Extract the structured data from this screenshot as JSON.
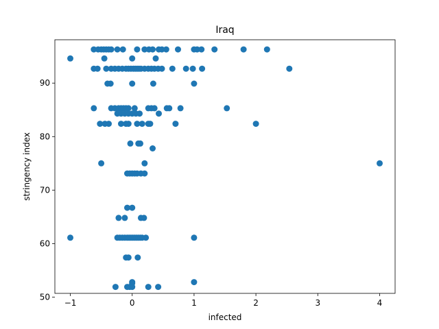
{
  "chart_data": {
    "type": "scatter",
    "title": "Iraq",
    "xlabel": "infected",
    "ylabel": "stringency index",
    "xlim": [
      -1.25,
      4.25
    ],
    "ylim": [
      50.7,
      98.1
    ],
    "xticks": [
      -1,
      0,
      1,
      2,
      3,
      4
    ],
    "yticks": [
      50,
      60,
      70,
      80,
      90
    ],
    "grid": false,
    "color": "#1f77b4",
    "points": [
      [
        -1.0,
        94.6
      ],
      [
        -1.0,
        61.1
      ],
      [
        -0.62,
        96.3
      ],
      [
        -0.55,
        96.3
      ],
      [
        -0.5,
        96.3
      ],
      [
        -0.46,
        96.3
      ],
      [
        -0.42,
        96.3
      ],
      [
        -0.38,
        96.3
      ],
      [
        -0.34,
        96.3
      ],
      [
        -0.24,
        96.3
      ],
      [
        -0.15,
        96.3
      ],
      [
        0.08,
        96.3
      ],
      [
        0.2,
        96.3
      ],
      [
        0.27,
        96.3
      ],
      [
        0.33,
        96.3
      ],
      [
        0.43,
        96.3
      ],
      [
        0.48,
        96.3
      ],
      [
        0.55,
        96.3
      ],
      [
        0.74,
        96.3
      ],
      [
        1.0,
        96.3
      ],
      [
        1.05,
        96.3
      ],
      [
        1.12,
        96.3
      ],
      [
        1.33,
        96.3
      ],
      [
        1.8,
        96.3
      ],
      [
        2.18,
        96.3
      ],
      [
        -0.45,
        94.6
      ],
      [
        0.0,
        94.6
      ],
      [
        0.38,
        94.6
      ],
      [
        -0.62,
        92.7
      ],
      [
        -0.56,
        92.7
      ],
      [
        -0.42,
        92.7
      ],
      [
        -0.34,
        92.7
      ],
      [
        -0.28,
        92.7
      ],
      [
        -0.22,
        92.7
      ],
      [
        -0.16,
        92.7
      ],
      [
        -0.1,
        92.7
      ],
      [
        -0.06,
        92.7
      ],
      [
        -0.02,
        92.7
      ],
      [
        0.02,
        92.7
      ],
      [
        0.05,
        92.7
      ],
      [
        0.08,
        92.7
      ],
      [
        0.11,
        92.7
      ],
      [
        0.14,
        92.7
      ],
      [
        0.2,
        92.7
      ],
      [
        0.26,
        92.7
      ],
      [
        0.31,
        92.7
      ],
      [
        0.36,
        92.7
      ],
      [
        0.42,
        92.7
      ],
      [
        0.48,
        92.7
      ],
      [
        0.65,
        92.7
      ],
      [
        0.87,
        92.7
      ],
      [
        0.98,
        92.7
      ],
      [
        1.13,
        92.7
      ],
      [
        2.54,
        92.7
      ],
      [
        -0.4,
        89.9
      ],
      [
        -0.35,
        89.9
      ],
      [
        0.0,
        89.9
      ],
      [
        0.34,
        89.9
      ],
      [
        1.0,
        89.9
      ],
      [
        -0.62,
        85.3
      ],
      [
        -0.34,
        85.3
      ],
      [
        -0.28,
        85.3
      ],
      [
        -0.22,
        85.3
      ],
      [
        -0.18,
        85.3
      ],
      [
        -0.14,
        85.3
      ],
      [
        -0.1,
        85.3
      ],
      [
        -0.06,
        85.3
      ],
      [
        0.04,
        85.3
      ],
      [
        0.26,
        85.3
      ],
      [
        0.31,
        85.3
      ],
      [
        0.36,
        85.3
      ],
      [
        0.56,
        85.3
      ],
      [
        0.6,
        85.3
      ],
      [
        0.78,
        85.3
      ],
      [
        1.53,
        85.3
      ],
      [
        -0.24,
        84.3
      ],
      [
        -0.18,
        84.3
      ],
      [
        -0.12,
        84.3
      ],
      [
        -0.06,
        84.3
      ],
      [
        0.0,
        84.3
      ],
      [
        0.06,
        84.3
      ],
      [
        0.12,
        84.3
      ],
      [
        0.43,
        84.3
      ],
      [
        -0.52,
        82.4
      ],
      [
        -0.44,
        82.4
      ],
      [
        -0.38,
        82.4
      ],
      [
        -0.18,
        82.4
      ],
      [
        -0.1,
        82.4
      ],
      [
        -0.06,
        82.4
      ],
      [
        0.08,
        82.4
      ],
      [
        0.16,
        82.4
      ],
      [
        0.26,
        82.4
      ],
      [
        0.29,
        82.4
      ],
      [
        0.7,
        82.4
      ],
      [
        2.0,
        82.4
      ],
      [
        -0.03,
        78.7
      ],
      [
        0.1,
        78.7
      ],
      [
        0.13,
        78.7
      ],
      [
        0.33,
        77.8
      ],
      [
        -0.5,
        75.0
      ],
      [
        0.2,
        75.0
      ],
      [
        4.0,
        75.0
      ],
      [
        -0.08,
        73.1
      ],
      [
        -0.04,
        73.1
      ],
      [
        0.0,
        73.1
      ],
      [
        0.04,
        73.1
      ],
      [
        0.08,
        73.1
      ],
      [
        0.14,
        73.1
      ],
      [
        0.2,
        73.1
      ],
      [
        -0.08,
        66.7
      ],
      [
        0.0,
        66.7
      ],
      [
        -0.22,
        64.8
      ],
      [
        -0.12,
        64.8
      ],
      [
        0.14,
        64.8
      ],
      [
        0.19,
        64.8
      ],
      [
        -0.24,
        61.1
      ],
      [
        -0.2,
        61.1
      ],
      [
        -0.16,
        61.1
      ],
      [
        -0.12,
        61.1
      ],
      [
        -0.08,
        61.1
      ],
      [
        -0.05,
        61.1
      ],
      [
        -0.02,
        61.1
      ],
      [
        0.01,
        61.1
      ],
      [
        0.04,
        61.1
      ],
      [
        0.07,
        61.1
      ],
      [
        0.1,
        61.1
      ],
      [
        0.13,
        61.1
      ],
      [
        0.16,
        61.1
      ],
      [
        0.22,
        61.1
      ],
      [
        1.0,
        61.1
      ],
      [
        -0.1,
        57.4
      ],
      [
        -0.06,
        57.4
      ],
      [
        0.09,
        57.4
      ],
      [
        0.0,
        52.8
      ],
      [
        0.0,
        52.6
      ],
      [
        1.0,
        52.8
      ],
      [
        -0.27,
        51.9
      ],
      [
        -0.08,
        51.9
      ],
      [
        -0.04,
        51.9
      ],
      [
        0.0,
        51.9
      ],
      [
        0.26,
        51.9
      ],
      [
        0.42,
        51.9
      ]
    ]
  }
}
